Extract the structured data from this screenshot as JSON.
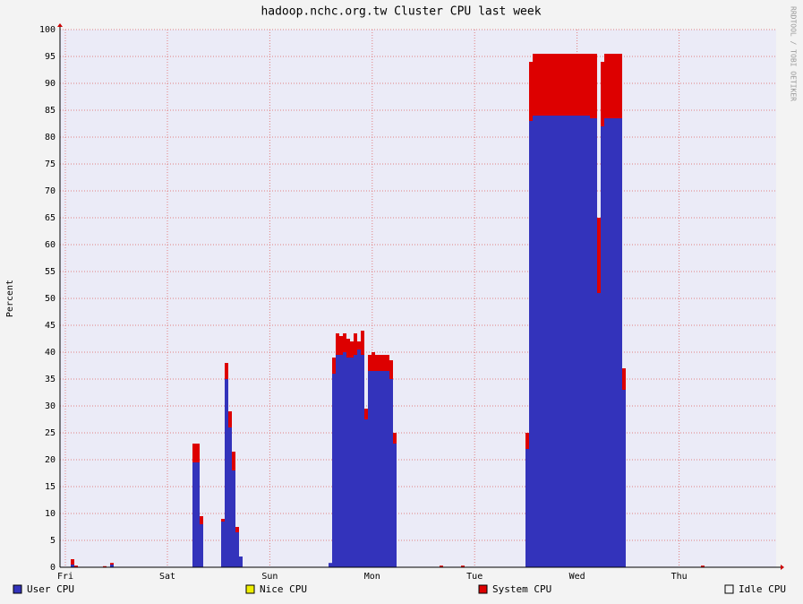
{
  "chart_data": {
    "type": "stacked-bar",
    "title": "hadoop.nchc.org.tw Cluster CPU last week",
    "y_label": "Percent",
    "watermark": "RRDTOOL / TOBI OETIKER",
    "xlim": [
      0,
      200
    ],
    "xticks": [
      {
        "value": 1.5,
        "label": "Fri"
      },
      {
        "value": 30,
        "label": "Sat"
      },
      {
        "value": 58.6,
        "label": "Sun"
      },
      {
        "value": 87.2,
        "label": "Mon"
      },
      {
        "value": 115.8,
        "label": "Tue"
      },
      {
        "value": 144.4,
        "label": "Wed"
      },
      {
        "value": 172.9,
        "label": "Thu"
      }
    ],
    "ylim": [
      0,
      100
    ],
    "yticks": [
      0,
      5,
      10,
      15,
      20,
      25,
      30,
      35,
      40,
      45,
      50,
      55,
      60,
      65,
      70,
      75,
      80,
      85,
      90,
      95,
      100
    ],
    "grid": true,
    "series": [
      {
        "name": "User CPU",
        "color": "#3333bb",
        "values": [
          0,
          0,
          0,
          0.5,
          0,
          0,
          0,
          0,
          0,
          0,
          0,
          0,
          0,
          0,
          0.5,
          0,
          0,
          0,
          0,
          0,
          0,
          0,
          0,
          0,
          0,
          0,
          0,
          0,
          0,
          0,
          0,
          0,
          0,
          0,
          0,
          0,
          0,
          19.5,
          19.5,
          8,
          0,
          0,
          0,
          0,
          0,
          8.5,
          35,
          26,
          18,
          6.5,
          2,
          0,
          0,
          0,
          0,
          0,
          0,
          0,
          0,
          0,
          0,
          0,
          0,
          0,
          0,
          0,
          0,
          0,
          0,
          0,
          0,
          0,
          0,
          0,
          0,
          0.8,
          36,
          39.5,
          39.5,
          40,
          39,
          39,
          39.5,
          40.5,
          39.5,
          27.5,
          36.5,
          36.5,
          36.5,
          36.5,
          36.5,
          36.5,
          35,
          23,
          0,
          0,
          0,
          0,
          0,
          0,
          0,
          0,
          0,
          0,
          0,
          0,
          0,
          0,
          0,
          0,
          0,
          0,
          0,
          0,
          0,
          0,
          0,
          0,
          0,
          0,
          0,
          0,
          0,
          0,
          0,
          0,
          0,
          0,
          0,
          0,
          22,
          83,
          84,
          84,
          84,
          84,
          84,
          84,
          84,
          84,
          84,
          84,
          84,
          84,
          84,
          84,
          84,
          84,
          83.5,
          83.5,
          51,
          82,
          83.5,
          83.5,
          83.5,
          83.5,
          83.5,
          33,
          0,
          0,
          0,
          0,
          0,
          0,
          0,
          0,
          0,
          0,
          0,
          0,
          0,
          0,
          0,
          0,
          0,
          0,
          0,
          0,
          0,
          0,
          0,
          0,
          0,
          0,
          0,
          0,
          0,
          0,
          0,
          0,
          0,
          0,
          0,
          0,
          0,
          0,
          0,
          0,
          0,
          0
        ]
      },
      {
        "name": "Nice CPU",
        "color": "#eeee00"
      },
      {
        "name": "System CPU",
        "color": "#dd0000",
        "values": [
          0,
          0,
          0,
          1,
          0.3,
          0,
          0,
          0,
          0,
          0,
          0,
          0,
          0.2,
          0,
          0.3,
          0,
          0,
          0,
          0,
          0,
          0,
          0,
          0,
          0,
          0,
          0,
          0,
          0,
          0,
          0,
          0,
          0,
          0,
          0,
          0,
          0,
          0,
          3.5,
          3.5,
          1.5,
          0,
          0,
          0,
          0,
          0,
          0.5,
          3,
          3,
          3.5,
          1,
          0,
          0,
          0,
          0,
          0,
          0,
          0,
          0,
          0,
          0,
          0,
          0,
          0,
          0,
          0,
          0,
          0,
          0,
          0,
          0,
          0,
          0,
          0,
          0,
          0,
          0,
          3,
          4,
          3.5,
          3.5,
          3.5,
          3,
          4,
          1.5,
          4.5,
          2,
          3,
          3.5,
          3,
          3,
          3,
          3,
          3.5,
          2,
          0,
          0,
          0,
          0,
          0,
          0,
          0,
          0,
          0,
          0,
          0,
          0,
          0.3,
          0,
          0,
          0,
          0,
          0,
          0.3,
          0,
          0,
          0,
          0,
          0,
          0,
          0,
          0,
          0,
          0,
          0,
          0,
          0,
          0,
          0,
          0,
          0,
          3,
          11,
          11.5,
          11.5,
          11.5,
          11.5,
          11.5,
          11.5,
          11.5,
          11.5,
          11.5,
          11.5,
          11.5,
          11.5,
          11.5,
          11.5,
          11.5,
          11.5,
          12,
          12,
          14,
          12,
          12,
          12,
          12,
          12,
          12,
          4,
          0,
          0,
          0,
          0,
          0,
          0,
          0,
          0,
          0,
          0,
          0,
          0,
          0,
          0,
          0,
          0,
          0,
          0,
          0,
          0,
          0,
          0.3,
          0,
          0,
          0,
          0,
          0,
          0,
          0,
          0,
          0,
          0,
          0,
          0,
          0,
          0,
          0,
          0,
          0,
          0,
          0,
          0
        ]
      },
      {
        "name": "Idle CPU",
        "color": "#f3f3f3"
      }
    ]
  }
}
